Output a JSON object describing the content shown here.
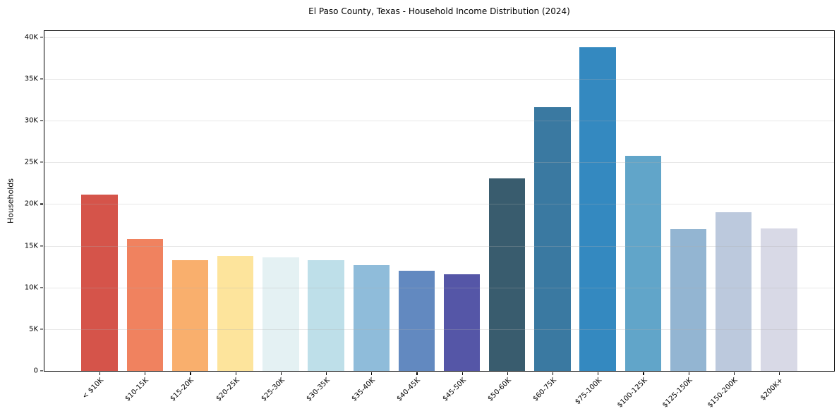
{
  "chart_data": {
    "type": "bar",
    "title": "El Paso County, Texas - Household Income Distribution (2024)",
    "xlabel": "",
    "ylabel": "Households",
    "categories": [
      "< $10K",
      "$10-15K",
      "$15-20K",
      "$20-25K",
      "$25-30K",
      "$30-35K",
      "$35-40K",
      "$40-45K",
      "$45-50K",
      "$50-60K",
      "$60-75K",
      "$75-100K",
      "$100-125K",
      "$125-150K",
      "$150-200K",
      "$200K+"
    ],
    "values": [
      21100,
      15800,
      13300,
      13800,
      13600,
      13300,
      12700,
      12000,
      11600,
      23100,
      31600,
      38800,
      25800,
      17000,
      19000,
      17100
    ],
    "bar_colors": [
      "#d5544a",
      "#f0825f",
      "#f9af6d",
      "#fde49c",
      "#e4f1f3",
      "#bedfe9",
      "#8fbcda",
      "#6289c0",
      "#5556a7",
      "#395c6e",
      "#3a79a1",
      "#3489c0",
      "#61a5c9",
      "#93b5d2",
      "#bcc9dd",
      "#d8d9e6"
    ],
    "ytick_labels": [
      "0",
      "5K",
      "10K",
      "15K",
      "20K",
      "25K",
      "30K",
      "35K",
      "40K"
    ],
    "ytick_values": [
      0,
      5000,
      10000,
      15000,
      20000,
      25000,
      30000,
      35000,
      40000
    ],
    "ylim": [
      0,
      40000
    ],
    "grid": "horizontal",
    "legend": "none",
    "colors": {
      "spine": "#000000",
      "grid": "#b0b0b0",
      "background": "#ffffff",
      "text": "#000000"
    }
  }
}
